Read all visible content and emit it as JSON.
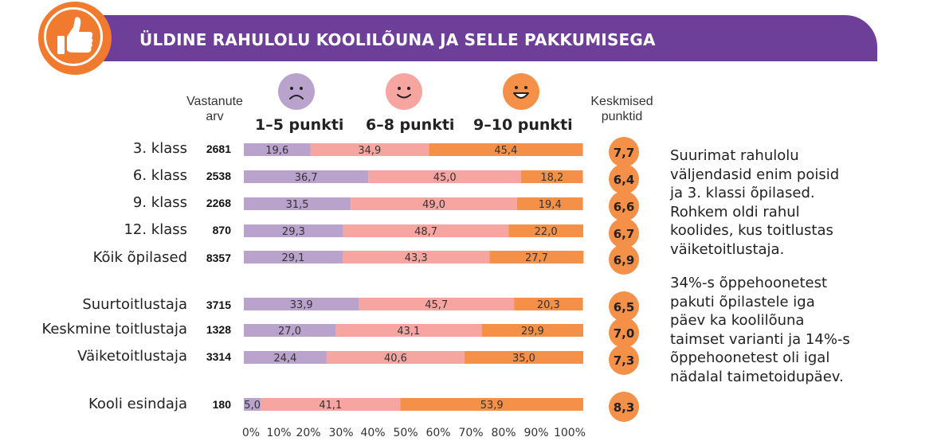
{
  "header": {
    "title": "ÜLDINE RAHULOLU KOOLILÕUNA JA SELLE PAKKUMISEGA",
    "icon": "thumbs-up-icon",
    "colors": {
      "banner": "#6e3f98",
      "badge": "#f07a2e"
    }
  },
  "columns": {
    "respondents_label_1": "Vastanute",
    "respondents_label_2": "arv",
    "average_label_1": "Keskmised",
    "average_label_2": "punktid"
  },
  "categories_header": [
    {
      "label": "1–5 punkti",
      "icon": "sad-face-icon",
      "color": "#b9a3cc"
    },
    {
      "label": "6–8 punkti",
      "icon": "smile-face-icon",
      "color": "#f6a5a0"
    },
    {
      "label": "9–10 punkti",
      "icon": "happy-face-icon",
      "color": "#f59049"
    }
  ],
  "chart_data": {
    "type": "bar",
    "orientation": "horizontal-stacked-100",
    "categories": [
      "3. klass",
      "6. klass",
      "9. klass",
      "12. klass",
      "Kõik õpilased",
      "Suurtoitlustaja",
      "Keskmine toitlustaja",
      "Väiketoitlustaja",
      "Kooli esindaja"
    ],
    "respondents": [
      "2681",
      "2538",
      "2268",
      "870",
      "8357",
      "3715",
      "1328",
      "3314",
      "180"
    ],
    "series": [
      {
        "name": "1–5 punkti",
        "color": "#b9a3cc",
        "values": [
          19.6,
          36.7,
          31.5,
          29.3,
          29.1,
          33.9,
          27.0,
          24.4,
          5.0
        ],
        "labels": [
          "19,6",
          "36,7",
          "31,5",
          "29,3",
          "29,1",
          "33,9",
          "27,0",
          "24,4",
          "5,0"
        ]
      },
      {
        "name": "6–8 punkti",
        "color": "#f6a5a0",
        "values": [
          34.9,
          45.0,
          49.0,
          48.7,
          43.3,
          45.7,
          43.1,
          40.6,
          41.1
        ],
        "labels": [
          "34,9",
          "45,0",
          "49,0",
          "48,7",
          "43,3",
          "45,7",
          "43,1",
          "40,6",
          "41,1"
        ]
      },
      {
        "name": "9–10 punkti",
        "color": "#f59049",
        "values": [
          45.4,
          18.2,
          19.4,
          22.0,
          27.7,
          20.3,
          29.9,
          35.0,
          53.9
        ],
        "labels": [
          "45,4",
          "18,2",
          "19,4",
          "22,0",
          "27,7",
          "20,3",
          "29,9",
          "35,0",
          "53,9"
        ]
      }
    ],
    "averages": [
      "7,7",
      "6,4",
      "6,6",
      "6,7",
      "6,9",
      "6,5",
      "7,0",
      "7,3",
      "8,3"
    ],
    "x_ticks": [
      "0%",
      "10%",
      "20%",
      "30%",
      "40%",
      "50%",
      "60%",
      "70%",
      "80%",
      "90%",
      "100%"
    ],
    "xlim": [
      0,
      100
    ]
  },
  "side_notes": {
    "paragraph1": [
      "Suurimat rahulolu",
      "väljendasid enim poisid",
      "ja 3. klassi õpilased.",
      "Rohkem oldi rahul",
      "koolides, kus toitlustas",
      "väiketoitlustaja."
    ],
    "paragraph2": [
      "34%-s õppehoonetest",
      "pakuti õpilastele iga",
      "päev ka koolilõuna",
      "taimset varianti ja 14%-s",
      "õppehoonetest oli igal",
      "nädalal taimetoidupäev."
    ]
  }
}
